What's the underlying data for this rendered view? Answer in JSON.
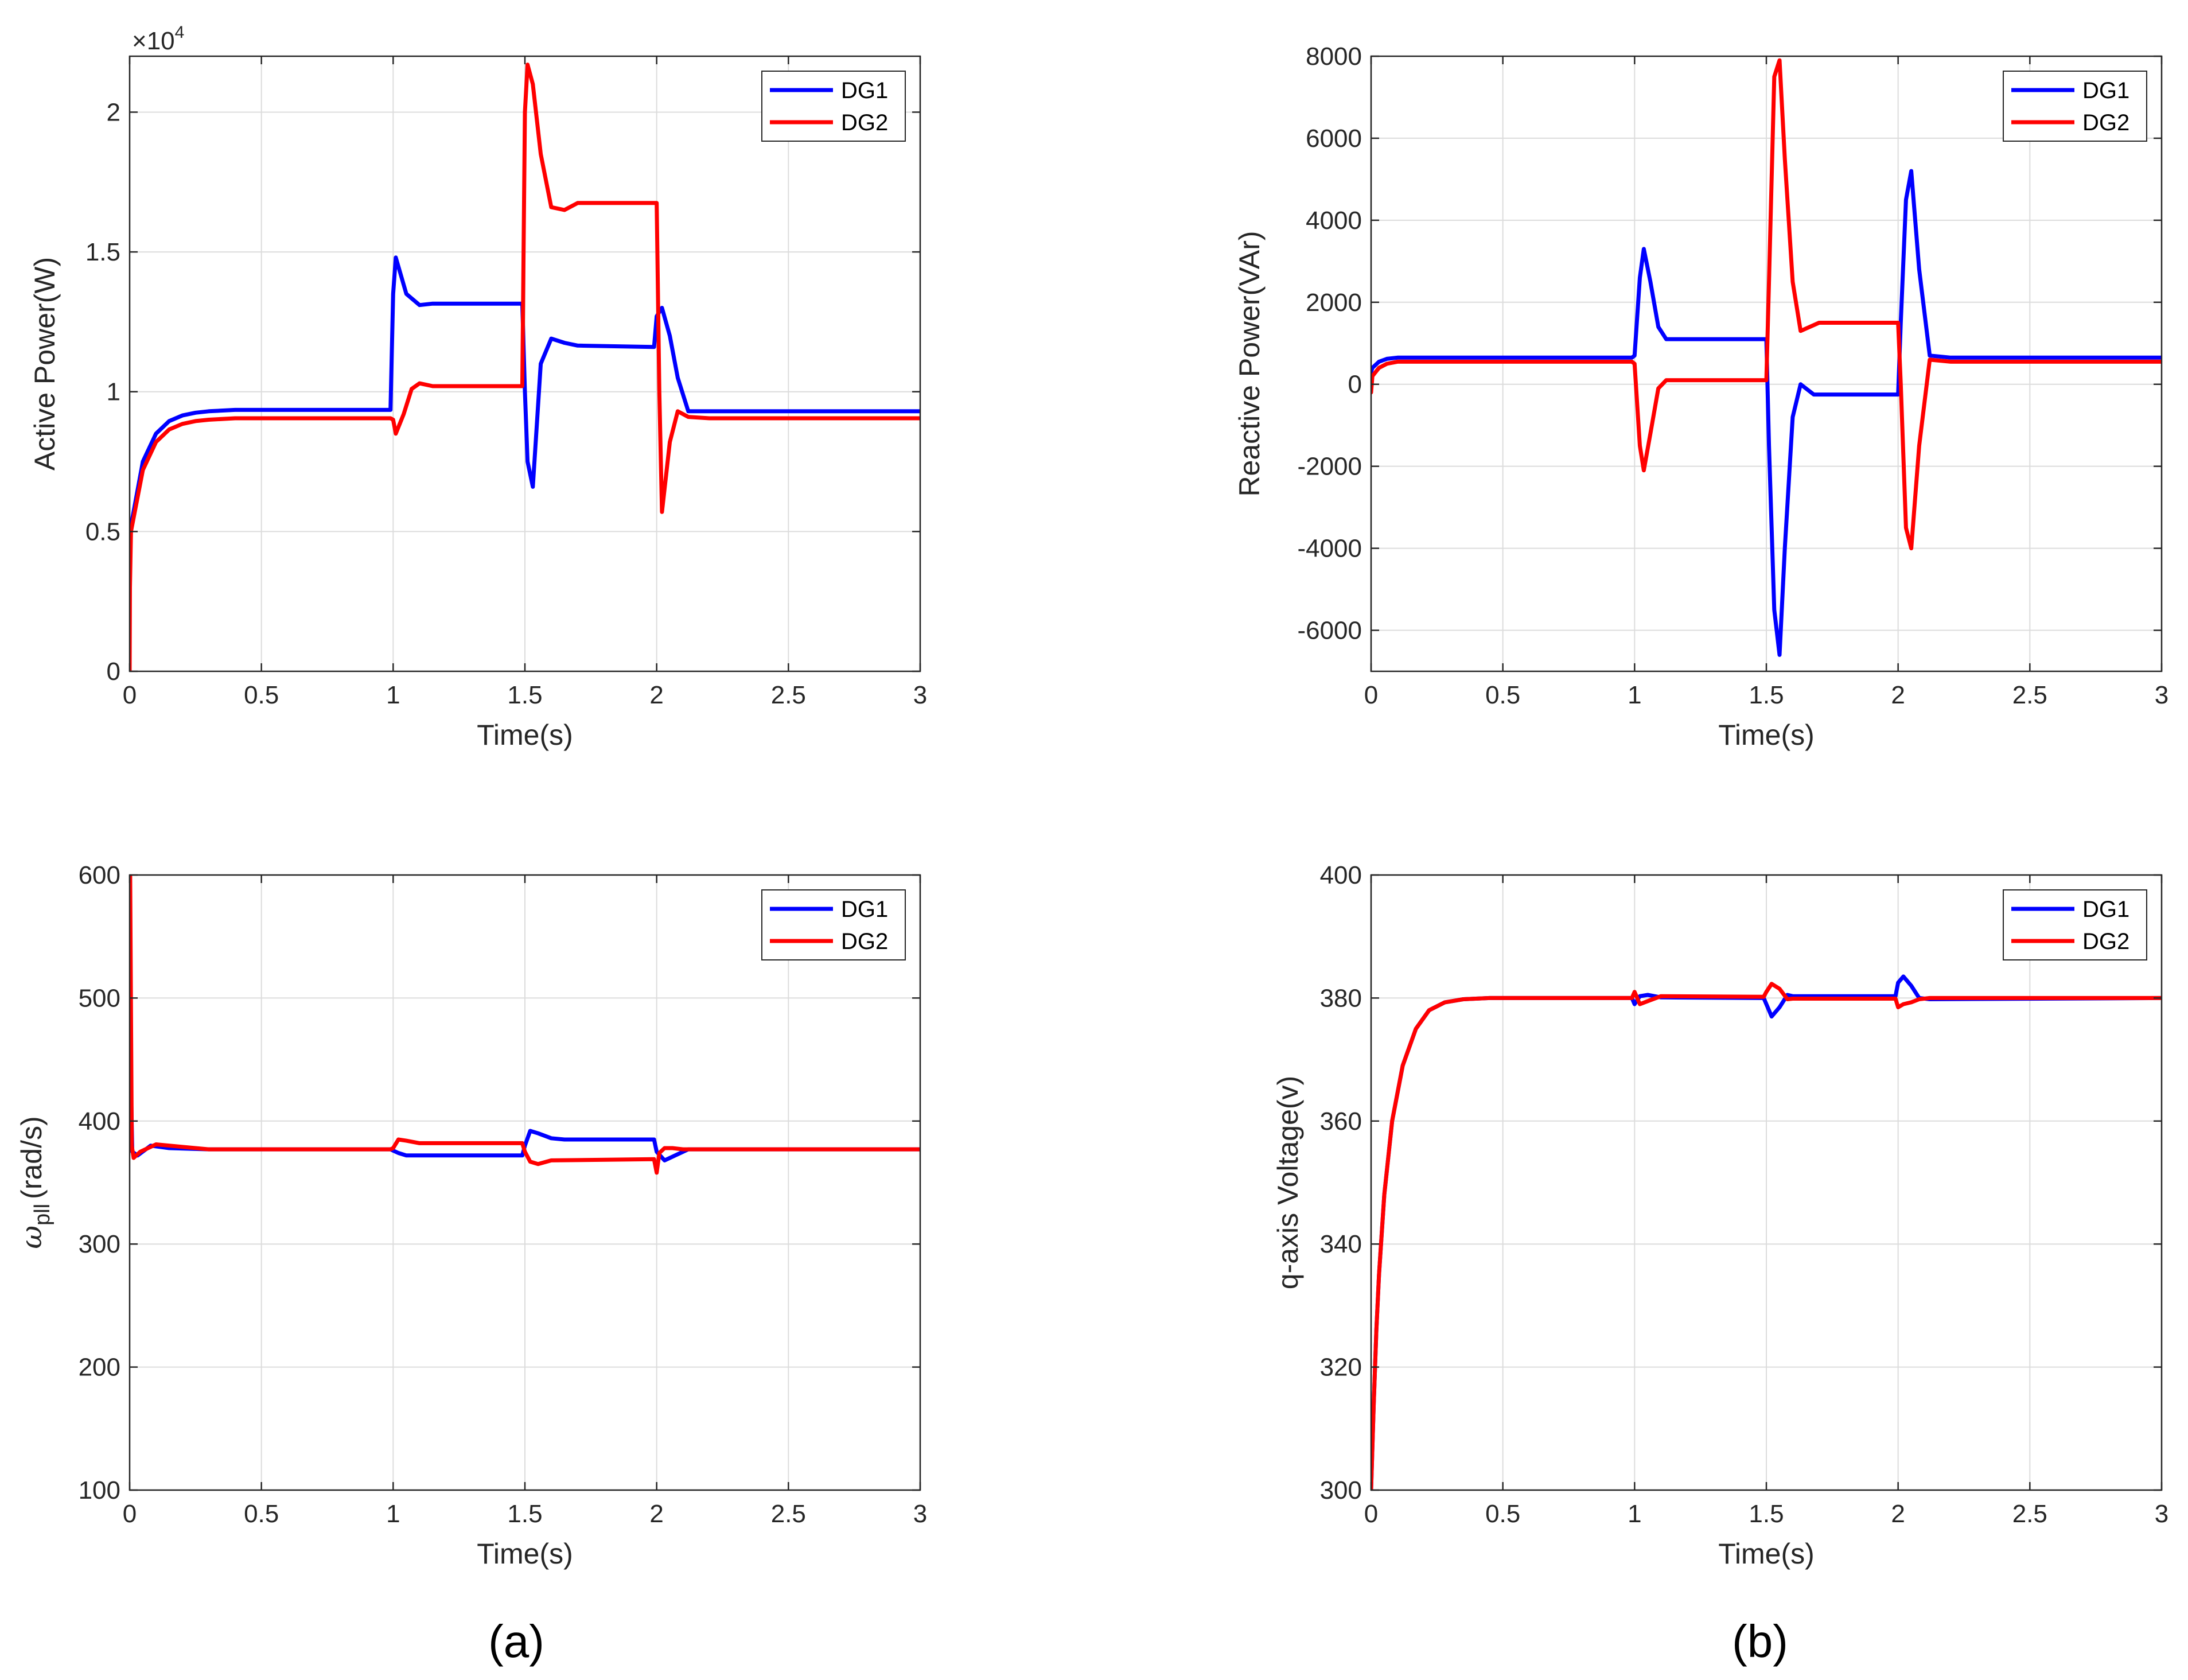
{
  "figure": {
    "captions": [
      "(a)",
      "(b)"
    ],
    "colors": {
      "DG1": "#0000ff",
      "DG2": "#ff0000",
      "grid": "#dcdcdc",
      "axis": "#262626"
    }
  },
  "chart_data": [
    {
      "id": "active",
      "type": "line",
      "title": "",
      "xlabel": "Time(s)",
      "ylabel": "Active Power(W)",
      "exponent": "×10^4",
      "exponent_base": "×10",
      "exponent_power": "4",
      "xlim": [
        0,
        3
      ],
      "ylim": [
        0,
        2.2
      ],
      "y_scale": 10000,
      "xticks": [
        0,
        0.5,
        1,
        1.5,
        2,
        2.5,
        3
      ],
      "xtick_labels": [
        "0",
        "0.5",
        "1",
        "1.5",
        "2",
        "2.5",
        "3"
      ],
      "yticks": [
        0,
        0.5,
        1,
        1.5,
        2
      ],
      "ytick_labels": [
        "0",
        "0.5",
        "1",
        "1.5",
        "2"
      ],
      "grid": true,
      "legend": "top-right",
      "series": [
        {
          "name": "DG1",
          "color": "#0000ff",
          "x": [
            0,
            0.005,
            0.05,
            0.1,
            0.15,
            0.2,
            0.25,
            0.3,
            0.4,
            0.6,
            0.99,
            1.0,
            1.01,
            1.05,
            1.1,
            1.15,
            1.49,
            1.5,
            1.51,
            1.53,
            1.56,
            1.6,
            1.65,
            1.7,
            1.99,
            2.0,
            2.02,
            2.05,
            2.08,
            2.12,
            2.2,
            3.0
          ],
          "y": [
            0.5,
            0.52,
            0.75,
            0.85,
            0.895,
            0.915,
            0.925,
            0.93,
            0.935,
            0.935,
            0.935,
            1.35,
            1.48,
            1.35,
            1.31,
            1.315,
            1.315,
            1.0,
            0.75,
            0.66,
            1.1,
            1.19,
            1.175,
            1.165,
            1.16,
            1.27,
            1.3,
            1.2,
            1.05,
            0.93,
            0.93,
            0.93
          ]
        },
        {
          "name": "DG2",
          "color": "#ff0000",
          "x": [
            0,
            0.001,
            0.005,
            0.05,
            0.1,
            0.15,
            0.2,
            0.25,
            0.3,
            0.4,
            0.6,
            0.99,
            1.0,
            1.01,
            1.04,
            1.07,
            1.1,
            1.15,
            1.49,
            1.5,
            1.51,
            1.53,
            1.56,
            1.6,
            1.65,
            1.7,
            1.99,
            2.0,
            2.01,
            2.02,
            2.05,
            2.08,
            2.12,
            2.2,
            3.0
          ],
          "y": [
            0,
            0.3,
            0.5,
            0.72,
            0.82,
            0.865,
            0.885,
            0.895,
            0.9,
            0.905,
            0.905,
            0.905,
            0.9,
            0.85,
            0.92,
            1.01,
            1.03,
            1.02,
            1.02,
            2.0,
            2.17,
            2.1,
            1.85,
            1.66,
            1.65,
            1.675,
            1.675,
            1.675,
            1.0,
            0.57,
            0.82,
            0.93,
            0.91,
            0.905,
            0.905
          ]
        }
      ]
    },
    {
      "id": "reactive",
      "type": "line",
      "title": "",
      "xlabel": "Time(s)",
      "ylabel": "Reactive Power(VAr)",
      "xlim": [
        0,
        3
      ],
      "ylim": [
        -7000,
        8000
      ],
      "y_scale": 1,
      "xticks": [
        0,
        0.5,
        1,
        1.5,
        2,
        2.5,
        3
      ],
      "xtick_labels": [
        "0",
        "0.5",
        "1",
        "1.5",
        "2",
        "2.5",
        "3"
      ],
      "yticks": [
        -6000,
        -4000,
        -2000,
        0,
        2000,
        4000,
        6000,
        8000
      ],
      "ytick_labels": [
        "-6000",
        "-4000",
        "-2000",
        "0",
        "2000",
        "4000",
        "6000",
        "8000"
      ],
      "grid": true,
      "legend": "top-right",
      "series": [
        {
          "name": "DG1",
          "color": "#0000ff",
          "x": [
            0,
            0.005,
            0.03,
            0.06,
            0.1,
            0.99,
            1.0,
            1.02,
            1.035,
            1.06,
            1.09,
            1.12,
            1.15,
            1.5,
            1.51,
            1.53,
            1.55,
            1.57,
            1.6,
            1.63,
            1.68,
            2.0,
            2.01,
            2.03,
            2.05,
            2.08,
            2.12,
            2.2,
            3.0
          ],
          "y": [
            300,
            400,
            550,
            620,
            650,
            650,
            700,
            2600,
            3300,
            2500,
            1400,
            1100,
            1100,
            1100,
            -1500,
            -5500,
            -6600,
            -4000,
            -800,
            0,
            -250,
            -250,
            1500,
            4500,
            5200,
            2800,
            700,
            650,
            650
          ]
        },
        {
          "name": "DG2",
          "color": "#ff0000",
          "x": [
            0,
            0.005,
            0.03,
            0.06,
            0.1,
            0.99,
            1.0,
            1.02,
            1.035,
            1.06,
            1.09,
            1.12,
            1.15,
            1.5,
            1.51,
            1.53,
            1.55,
            1.57,
            1.6,
            1.63,
            1.7,
            2.0,
            2.01,
            2.03,
            2.05,
            2.08,
            2.12,
            2.2,
            3.0
          ],
          "y": [
            -200,
            200,
            400,
            500,
            550,
            550,
            500,
            -1500,
            -2100,
            -1200,
            -100,
            100,
            100,
            100,
            2500,
            7500,
            7900,
            5500,
            2500,
            1300,
            1500,
            1500,
            0,
            -3500,
            -4000,
            -1500,
            600,
            550,
            550
          ]
        }
      ]
    },
    {
      "id": "omega",
      "type": "line",
      "title": "",
      "xlabel": "Time(s)",
      "ylabel": "ω_pll (rad/s)",
      "ylabel_symbol": "ω",
      "ylabel_subscript": "pll",
      "ylabel_units": "(rad/s)",
      "xlim": [
        0,
        3
      ],
      "ylim": [
        100,
        600
      ],
      "y_scale": 1,
      "xticks": [
        0,
        0.5,
        1,
        1.5,
        2,
        2.5,
        3
      ],
      "xtick_labels": [
        "0",
        "0.5",
        "1",
        "1.5",
        "2",
        "2.5",
        "3"
      ],
      "yticks": [
        100,
        200,
        300,
        400,
        500,
        600
      ],
      "ytick_labels": [
        "100",
        "200",
        "300",
        "400",
        "500",
        "600"
      ],
      "grid": true,
      "legend": "top-right",
      "series": [
        {
          "name": "DG1",
          "color": "#0000ff",
          "x": [
            0,
            0.003,
            0.01,
            0.03,
            0.08,
            0.15,
            0.3,
            0.99,
            1.0,
            1.02,
            1.05,
            1.1,
            1.49,
            1.5,
            1.52,
            1.55,
            1.6,
            1.65,
            1.99,
            2.0,
            2.03,
            2.07,
            2.12,
            2.2,
            3.0
          ],
          "y": [
            600,
            450,
            375,
            372,
            380,
            378,
            377,
            377,
            376,
            374,
            372,
            372,
            372,
            380,
            392,
            390,
            386,
            385,
            385,
            375,
            368,
            372,
            377,
            377,
            377
          ]
        },
        {
          "name": "DG2",
          "color": "#ff0000",
          "x": [
            0,
            0.002,
            0.008,
            0.015,
            0.04,
            0.1,
            0.2,
            0.3,
            0.99,
            1.0,
            1.02,
            1.05,
            1.1,
            1.49,
            1.5,
            1.52,
            1.55,
            1.6,
            1.99,
            2.0,
            2.01,
            2.03,
            2.06,
            2.1,
            2.2,
            3.0
          ],
          "y": [
            600,
            600,
            380,
            370,
            375,
            381,
            379,
            377,
            377,
            378,
            385,
            384,
            382,
            382,
            375,
            367,
            365,
            368,
            369,
            358,
            374,
            378,
            378,
            377,
            377,
            377
          ]
        }
      ]
    },
    {
      "id": "voltage",
      "type": "line",
      "title": "",
      "xlabel": "Time(s)",
      "ylabel": "q-axis Voltage(v)",
      "xlim": [
        0,
        3
      ],
      "ylim": [
        300,
        400
      ],
      "y_scale": 1,
      "xticks": [
        0,
        0.5,
        1,
        1.5,
        2,
        2.5,
        3
      ],
      "xtick_labels": [
        "0",
        "0.5",
        "1",
        "1.5",
        "2",
        "2.5",
        "3"
      ],
      "yticks": [
        300,
        320,
        340,
        360,
        380,
        400
      ],
      "ytick_labels": [
        "300",
        "320",
        "340",
        "360",
        "380",
        "400"
      ],
      "grid": true,
      "legend": "top-right",
      "series": [
        {
          "name": "DG1",
          "color": "#0000ff",
          "x": [
            0,
            0.01,
            0.02,
            0.03,
            0.05,
            0.08,
            0.12,
            0.17,
            0.22,
            0.28,
            0.35,
            0.45,
            0.99,
            1.0,
            1.02,
            1.05,
            1.1,
            1.49,
            1.5,
            1.52,
            1.55,
            1.58,
            1.6,
            1.99,
            2.0,
            2.02,
            2.05,
            2.08,
            2.12,
            3.0
          ],
          "y": [
            300,
            314,
            326,
            335,
            348,
            360,
            369,
            375,
            378,
            379.3,
            379.8,
            380,
            380,
            379,
            380.3,
            380.5,
            380.1,
            380,
            379,
            377,
            378.5,
            380.5,
            380.3,
            380.3,
            382.5,
            383.5,
            382,
            380,
            379.8,
            380
          ]
        },
        {
          "name": "DG2",
          "color": "#ff0000",
          "x": [
            0,
            0.01,
            0.02,
            0.03,
            0.05,
            0.08,
            0.12,
            0.17,
            0.22,
            0.28,
            0.35,
            0.45,
            0.99,
            1.0,
            1.02,
            1.05,
            1.1,
            1.49,
            1.5,
            1.52,
            1.55,
            1.58,
            1.6,
            1.99,
            2.0,
            2.02,
            2.05,
            2.08,
            2.12,
            3.0
          ],
          "y": [
            300,
            314,
            326,
            335,
            348,
            360,
            369,
            375,
            378,
            379.3,
            379.8,
            380,
            380,
            381,
            379,
            379.5,
            380.3,
            380.2,
            381,
            382.3,
            381.5,
            379.8,
            379.9,
            379.9,
            378.5,
            379,
            379.3,
            379.8,
            380,
            380
          ]
        }
      ]
    }
  ]
}
